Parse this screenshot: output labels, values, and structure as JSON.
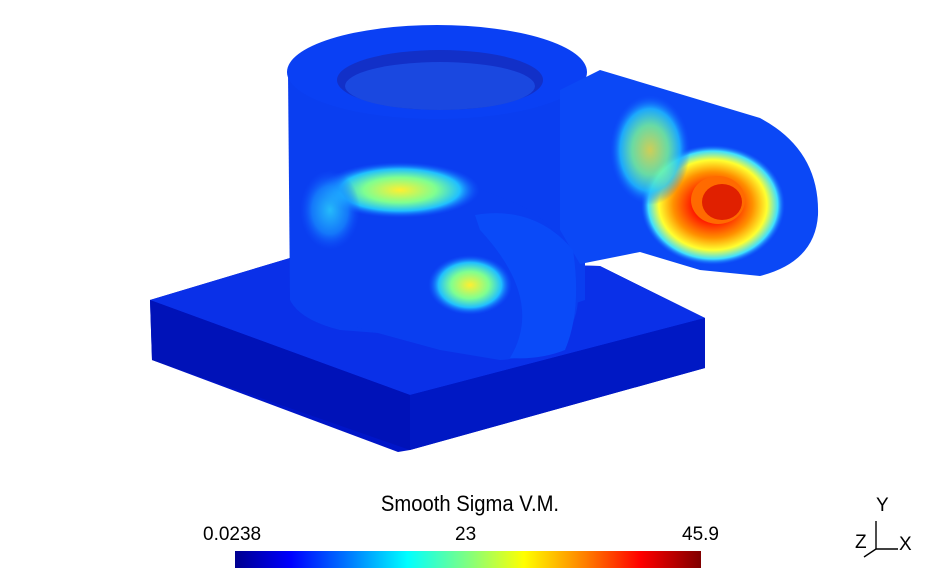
{
  "colormap": {
    "title": "Smooth Sigma V.M.",
    "min": "0.0238",
    "mid": "23",
    "max": "45.9",
    "colors": [
      "#00008f",
      "#0000ff",
      "#0080ff",
      "#00ffff",
      "#80ff80",
      "#ffff00",
      "#ff8000",
      "#ff0000",
      "#800000"
    ]
  },
  "axes_triad": {
    "y": "Y",
    "x": "X",
    "z": "Z"
  },
  "model": {
    "name": "stress-contour-part",
    "dominant_color": "#0a1fd8"
  }
}
